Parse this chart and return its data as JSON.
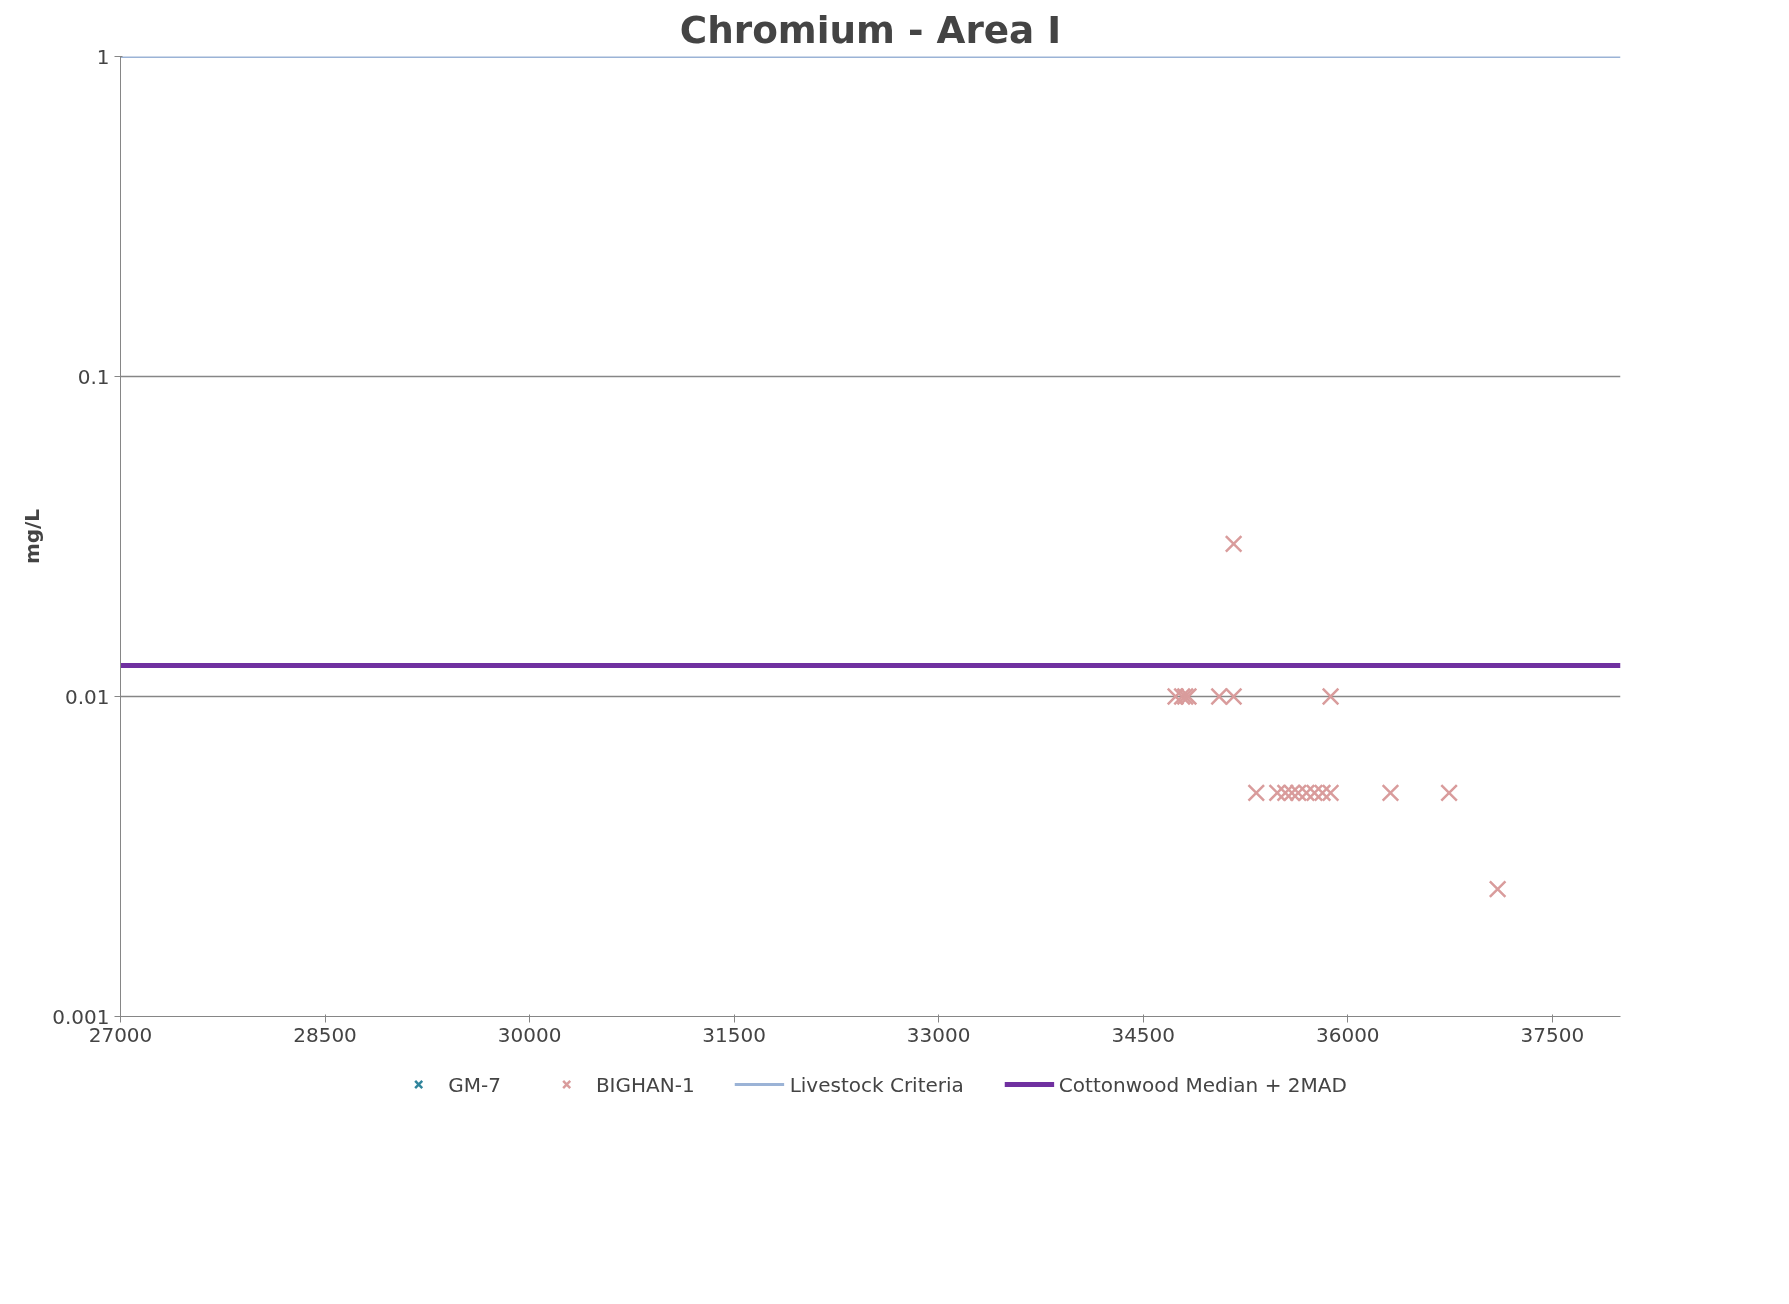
{
  "chart_data": {
    "type": "scatter",
    "title": "Chromium - Area I",
    "ylabel": "mg/L",
    "xlim": [
      27000,
      38000
    ],
    "xticks": [
      27000,
      28500,
      30000,
      31500,
      33000,
      34500,
      36000,
      37500
    ],
    "ylim": [
      0.001,
      1
    ],
    "yticks": [
      0.001,
      0.01,
      0.1,
      1
    ],
    "log": "y",
    "grid": "y",
    "legend": "bottom",
    "marker": "cross",
    "series": [
      {
        "name": "GM-7",
        "color": "#31859c"
      },
      {
        "name": "BIGHAN-1",
        "color": "#d99c9c",
        "x": [
          34737,
          34785,
          34808,
          34832,
          35057,
          35163,
          35874,
          35163,
          35329,
          35483,
          35542,
          35590,
          35637,
          35697,
          35756,
          35815,
          35874,
          36313,
          36743,
          37099
        ],
        "values": [
          0.01,
          0.01,
          0.01,
          0.01,
          0.01,
          0.01,
          0.01,
          0.03,
          0.005,
          0.005,
          0.005,
          0.005,
          0.005,
          0.005,
          0.005,
          0.005,
          0.005,
          0.005,
          0.005,
          0.0025
        ]
      },
      {
        "name": "Livestock Criteria",
        "type": "line",
        "marker": "none",
        "color": "#9bb3d6",
        "x": [
          27000,
          38000
        ],
        "values": [
          1,
          1
        ]
      },
      {
        "name": "Cottonwood Median + 2MAD",
        "type": "line",
        "marker": "none",
        "color": "#7030a0",
        "x": [
          27000,
          38000
        ],
        "values": [
          0.0125,
          0.0125
        ]
      }
    ]
  }
}
